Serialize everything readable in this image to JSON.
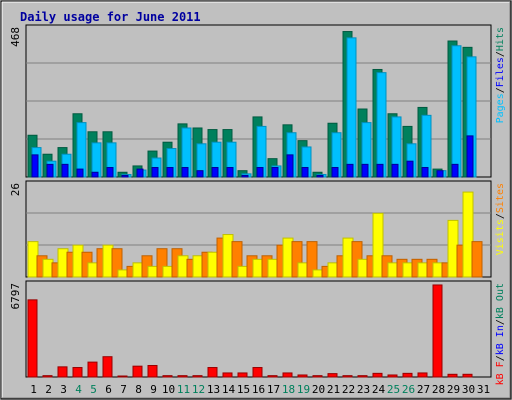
{
  "title": "Daily usage for June 2011",
  "colors": {
    "hits": "#00805c",
    "files": "#00c0ff",
    "pages": "#0000ff",
    "visits": "#ffff00",
    "sites": "#ff8000",
    "kbf": "#ff0000",
    "kbin": "#0000ff",
    "kbout": "#00805c",
    "panel": "#c0c0c0",
    "title": "#0000a0"
  },
  "chart_data": [
    {
      "type": "bar",
      "panel": "hits-files-pages",
      "ymax_label": "468",
      "ymax": 468,
      "legend": [
        "Pages",
        "/",
        "Files",
        "/",
        "Hits"
      ],
      "categories": [
        "1",
        "2",
        "3",
        "4",
        "5",
        "6",
        "7",
        "8",
        "9",
        "10",
        "11",
        "12",
        "13",
        "14",
        "15",
        "16",
        "17",
        "18",
        "19",
        "20",
        "21",
        "22",
        "23",
        "24",
        "25",
        "26",
        "27",
        "28",
        "29",
        "30",
        "31"
      ],
      "weekend_days": [
        "4",
        "5",
        "11",
        "12",
        "18",
        "19",
        "25",
        "26"
      ],
      "series": [
        {
          "name": "Hits",
          "values": [
            132,
            72,
            93,
            200,
            143,
            143,
            15,
            35,
            82,
            110,
            168,
            155,
            150,
            150,
            20,
            190,
            58,
            165,
            115,
            15,
            170,
            460,
            215,
            340,
            200,
            160,
            220,
            25,
            430,
            410,
            0
          ]
        },
        {
          "name": "Files",
          "values": [
            93,
            50,
            72,
            172,
            108,
            108,
            8,
            22,
            60,
            90,
            155,
            105,
            110,
            110,
            10,
            160,
            35,
            140,
            95,
            8,
            140,
            440,
            172,
            330,
            190,
            105,
            195,
            20,
            415,
            380,
            0
          ]
        },
        {
          "name": "Pages",
          "values": [
            70,
            40,
            40,
            25,
            15,
            30,
            5,
            25,
            30,
            30,
            30,
            20,
            30,
            30,
            5,
            30,
            30,
            70,
            30,
            5,
            30,
            40,
            40,
            40,
            40,
            50,
            30,
            20,
            40,
            130,
            0
          ]
        }
      ]
    },
    {
      "type": "bar",
      "panel": "visits-sites",
      "ymax_label": "26",
      "ymax": 26,
      "legend": [
        "Visits",
        "/",
        "Sites"
      ],
      "categories": [
        "1",
        "2",
        "3",
        "4",
        "5",
        "6",
        "7",
        "8",
        "9",
        "10",
        "11",
        "12",
        "13",
        "14",
        "15",
        "16",
        "17",
        "18",
        "19",
        "20",
        "21",
        "22",
        "23",
        "24",
        "25",
        "26",
        "27",
        "28",
        "29",
        "30",
        "31"
      ],
      "series": [
        {
          "name": "Visits",
          "values": [
            10,
            5,
            8,
            9,
            4,
            9,
            2,
            4,
            3,
            3,
            6,
            6,
            7,
            12,
            3,
            5,
            5,
            11,
            4,
            2,
            4,
            11,
            5,
            18,
            4,
            4,
            4,
            4,
            16,
            24,
            0
          ]
        },
        {
          "name": "Sites",
          "values": [
            6,
            4,
            7,
            7,
            8,
            8,
            3,
            6,
            8,
            8,
            5,
            7,
            11,
            10,
            6,
            6,
            9,
            10,
            10,
            3,
            6,
            10,
            6,
            6,
            5,
            5,
            5,
            4,
            9,
            10,
            0
          ]
        }
      ]
    },
    {
      "type": "bar",
      "panel": "kbf-kbin-kbout",
      "ymax_label": "6797",
      "ymax": 6797,
      "legend": [
        "kB F",
        "/",
        "kB In",
        "/",
        "kB Out"
      ],
      "categories": [
        "1",
        "2",
        "3",
        "4",
        "5",
        "6",
        "7",
        "8",
        "9",
        "10",
        "11",
        "12",
        "13",
        "14",
        "15",
        "16",
        "17",
        "18",
        "19",
        "20",
        "21",
        "22",
        "23",
        "24",
        "25",
        "26",
        "27",
        "28",
        "29",
        "30",
        "31"
      ],
      "series": [
        {
          "name": "kB F",
          "values": [
            5700,
            100,
            750,
            700,
            1100,
            1500,
            60,
            800,
            850,
            100,
            100,
            100,
            700,
            300,
            300,
            700,
            100,
            300,
            150,
            100,
            250,
            100,
            100,
            270,
            150,
            270,
            300,
            6800,
            200,
            200,
            0
          ]
        },
        {
          "name": "kB In",
          "values": [
            0,
            0,
            0,
            0,
            0,
            0,
            0,
            0,
            0,
            0,
            0,
            0,
            0,
            0,
            0,
            0,
            0,
            0,
            0,
            0,
            0,
            0,
            0,
            0,
            0,
            0,
            0,
            0,
            0,
            0,
            0
          ]
        },
        {
          "name": "kB Out",
          "values": [
            0,
            0,
            0,
            0,
            0,
            0,
            0,
            0,
            0,
            0,
            0,
            0,
            0,
            0,
            0,
            0,
            0,
            0,
            0,
            0,
            0,
            0,
            0,
            0,
            0,
            0,
            0,
            0,
            0,
            0,
            0
          ]
        }
      ]
    }
  ]
}
